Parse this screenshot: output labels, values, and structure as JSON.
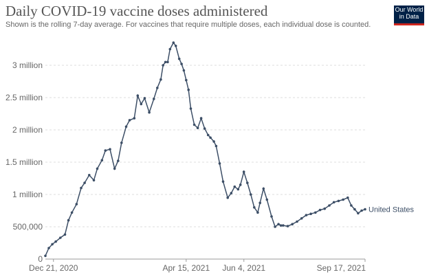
{
  "header": {
    "title": "Daily COVID-19 vaccine doses administered",
    "subtitle": "Shown is the rolling 7-day average. For vaccines that require multiple doses, each individual dose is counted."
  },
  "logo": {
    "line1": "Our World",
    "line2": "in Data",
    "bg": "#002147",
    "accent": "#ce261e"
  },
  "chart_data": {
    "type": "line",
    "title": "Daily COVID-19 vaccine doses administered",
    "subtitle": "Shown is the rolling 7-day average. For vaccines that require multiple doses, each individual dose is counted.",
    "grid": true,
    "ylim": [
      0,
      3500000
    ],
    "y_ticks": [
      {
        "value": 0,
        "label": "0"
      },
      {
        "value": 500000,
        "label": "500,000"
      },
      {
        "value": 1000000,
        "label": "1 million"
      },
      {
        "value": 1500000,
        "label": "1.5 million"
      },
      {
        "value": 2000000,
        "label": "2 million"
      },
      {
        "value": 2500000,
        "label": "2.5 million"
      },
      {
        "value": 3000000,
        "label": "3 million"
      }
    ],
    "xlim": [
      "2020-12-14",
      "2021-09-17"
    ],
    "x_ticks": [
      {
        "value": "2020-12-21",
        "label": "Dec 21, 2020"
      },
      {
        "value": "2021-04-15",
        "label": "Apr 15, 2021"
      },
      {
        "value": "2021-06-04",
        "label": "Jun 4, 2021"
      },
      {
        "value": "2021-09-17",
        "label": "Sep 17, 2021"
      }
    ],
    "series": [
      {
        "name": "United States",
        "color": "#3c4e66",
        "x": [
          "2020-12-14",
          "2020-12-17",
          "2020-12-20",
          "2020-12-23",
          "2020-12-27",
          "2020-12-31",
          "2021-01-03",
          "2021-01-06",
          "2021-01-10",
          "2021-01-14",
          "2021-01-17",
          "2021-01-21",
          "2021-01-25",
          "2021-01-28",
          "2021-02-01",
          "2021-02-04",
          "2021-02-08",
          "2021-02-12",
          "2021-02-15",
          "2021-02-18",
          "2021-02-22",
          "2021-02-25",
          "2021-03-01",
          "2021-03-04",
          "2021-03-07",
          "2021-03-10",
          "2021-03-14",
          "2021-03-18",
          "2021-03-21",
          "2021-03-24",
          "2021-03-26",
          "2021-03-28",
          "2021-03-30",
          "2021-04-01",
          "2021-04-04",
          "2021-04-06",
          "2021-04-09",
          "2021-04-11",
          "2021-04-13",
          "2021-04-15",
          "2021-04-17",
          "2021-04-19",
          "2021-04-22",
          "2021-04-25",
          "2021-04-28",
          "2021-05-01",
          "2021-05-04",
          "2021-05-06",
          "2021-05-09",
          "2021-05-11",
          "2021-05-14",
          "2021-05-17",
          "2021-05-21",
          "2021-05-24",
          "2021-05-27",
          "2021-05-30",
          "2021-06-01",
          "2021-06-04",
          "2021-06-07",
          "2021-06-10",
          "2021-06-13",
          "2021-06-16",
          "2021-06-18",
          "2021-06-21",
          "2021-06-24",
          "2021-06-28",
          "2021-07-01",
          "2021-07-04",
          "2021-07-06",
          "2021-07-08",
          "2021-07-12",
          "2021-07-16",
          "2021-07-20",
          "2021-07-24",
          "2021-07-28",
          "2021-08-01",
          "2021-08-05",
          "2021-08-09",
          "2021-08-13",
          "2021-08-17",
          "2021-08-21",
          "2021-08-25",
          "2021-08-29",
          "2021-09-02",
          "2021-09-05",
          "2021-09-08",
          "2021-09-11",
          "2021-09-14",
          "2021-09-17"
        ],
        "y": [
          50000,
          170000,
          230000,
          270000,
          330000,
          380000,
          600000,
          720000,
          850000,
          1100000,
          1180000,
          1300000,
          1220000,
          1400000,
          1530000,
          1680000,
          1700000,
          1400000,
          1520000,
          1800000,
          2050000,
          2150000,
          2180000,
          2530000,
          2400000,
          2490000,
          2270000,
          2480000,
          2650000,
          2780000,
          3000000,
          3050000,
          3050000,
          3250000,
          3350000,
          3300000,
          3100000,
          3020000,
          2920000,
          2770000,
          2620000,
          2330000,
          2080000,
          2030000,
          2180000,
          2020000,
          1920000,
          1880000,
          1820000,
          1750000,
          1480000,
          1200000,
          950000,
          1020000,
          1120000,
          1080000,
          1150000,
          1350000,
          1180000,
          1000000,
          800000,
          720000,
          870000,
          1090000,
          920000,
          660000,
          500000,
          540000,
          520000,
          520000,
          510000,
          540000,
          580000,
          630000,
          680000,
          700000,
          720000,
          760000,
          780000,
          830000,
          880000,
          900000,
          920000,
          950000,
          830000,
          770000,
          710000,
          750000,
          770000
        ]
      }
    ]
  }
}
